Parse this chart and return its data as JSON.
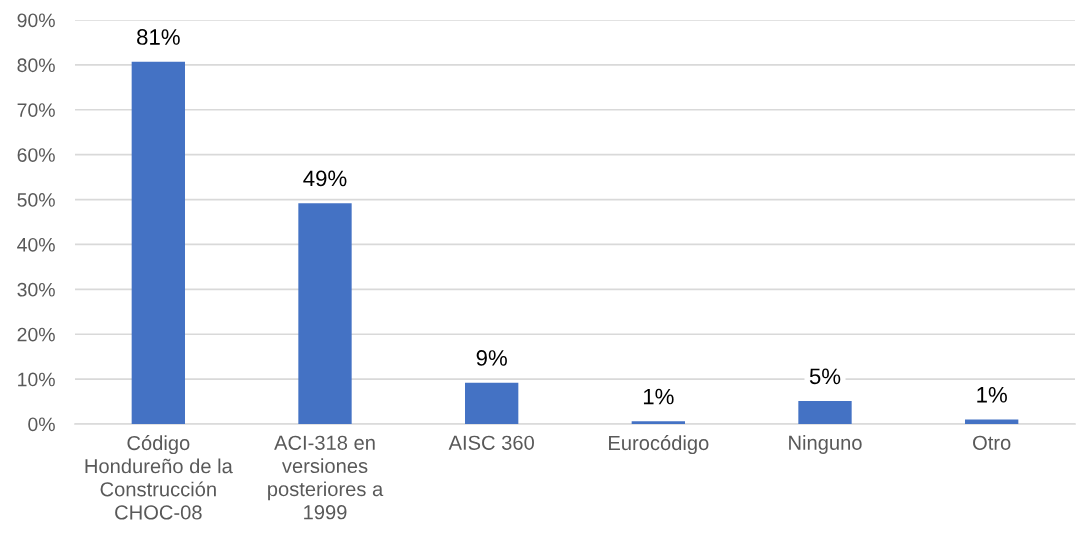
{
  "chart_data": {
    "type": "bar",
    "categories": [
      "Código\nHondureño de la\nConstrucción\nCHOC-08",
      "ACI-318 en\nversiones\nposteriores a\n1999",
      "AISC 360",
      "Eurocódigo",
      "Ninguno",
      "Otro"
    ],
    "values": [
      80.7,
      49.2,
      9.2,
      0.6,
      5.1,
      1.0
    ],
    "value_labels": [
      "81%",
      "49%",
      "9%",
      "1%",
      "5%",
      "1%"
    ],
    "color": "#4472c4",
    "ylim": [
      0,
      90
    ],
    "yticks": [
      {
        "value": 0,
        "label": "0%"
      },
      {
        "value": 10,
        "label": "10%"
      },
      {
        "value": 20,
        "label": "20%"
      },
      {
        "value": 30,
        "label": "30%"
      },
      {
        "value": 40,
        "label": "40%"
      },
      {
        "value": 50,
        "label": "50%"
      },
      {
        "value": 60,
        "label": "60%"
      },
      {
        "value": 70,
        "label": "70%"
      },
      {
        "value": 80,
        "label": "80%"
      },
      {
        "value": 90,
        "label": "90%"
      }
    ],
    "grid": "y",
    "legend": false
  }
}
